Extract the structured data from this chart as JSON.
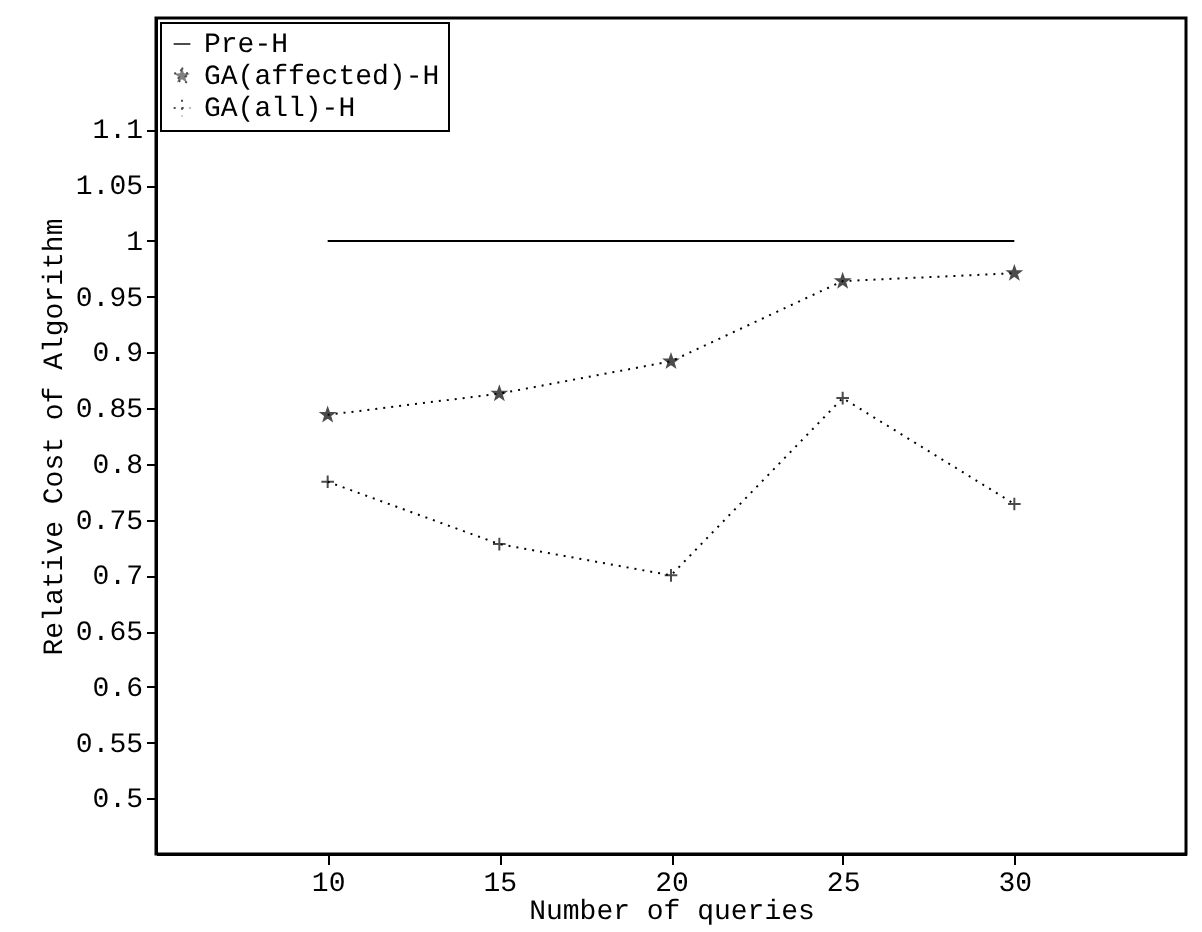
{
  "chart_data": {
    "type": "line",
    "xlabel": "Number of queries",
    "ylabel": "Relative Cost of Algorithm",
    "x": [
      10,
      15,
      20,
      25,
      30
    ],
    "series": [
      {
        "name": "Pre-H",
        "color": "#000000",
        "values": [
          1,
          1,
          1,
          1,
          1
        ],
        "marker": "none",
        "line_style": "solid"
      },
      {
        "name": "GA(affected)-H",
        "color": "#000000",
        "values": [
          0.844,
          0.863,
          0.892,
          0.964,
          0.971
        ],
        "marker": "star",
        "line_style": "dotted"
      },
      {
        "name": "GA(all)-H",
        "color": "#000000",
        "values": [
          0.784,
          0.728,
          0.7,
          0.859,
          0.764
        ],
        "marker": "cross",
        "line_style": "dotted"
      }
    ],
    "xlim": [
      5,
      35
    ],
    "xticks": [
      10,
      15,
      20,
      25,
      30
    ],
    "ylim": [
      0.45,
      1.2
    ],
    "yticks": [
      0.5,
      0.55,
      0.6,
      0.65,
      0.7,
      0.75,
      0.8,
      0.85,
      0.9,
      0.95,
      1,
      1.05,
      1.1
    ],
    "legend": "top left",
    "grid": false
  }
}
